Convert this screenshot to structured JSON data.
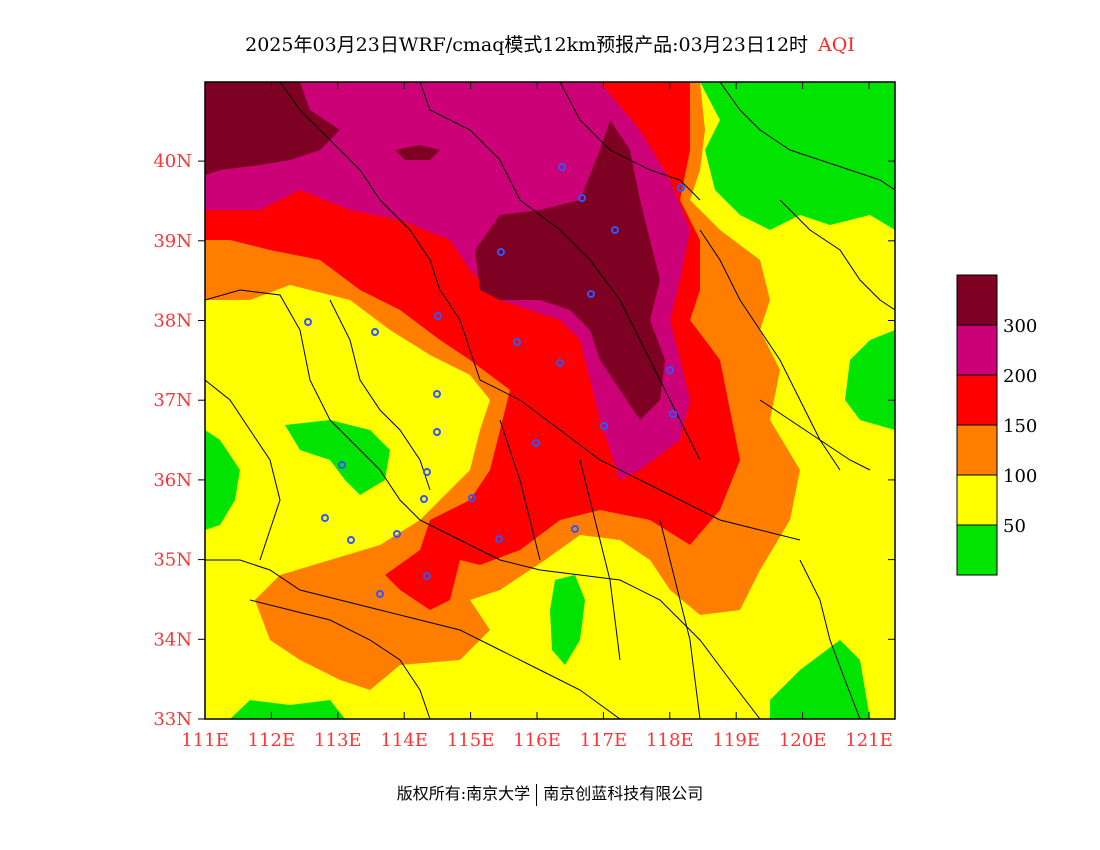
{
  "title": {
    "main": "2025年03月23日WRF/cmaq模式12km预报产品:03月23日12时",
    "variable": "AQI"
  },
  "axes": {
    "lat_labels": [
      "33N",
      "34N",
      "35N",
      "36N",
      "37N",
      "38N",
      "39N",
      "40N"
    ],
    "lon_labels": [
      "111E",
      "112E",
      "113E",
      "114E",
      "115E",
      "116E",
      "117E",
      "118E",
      "119E",
      "120E",
      "121E"
    ]
  },
  "legend": {
    "labels": [
      "50",
      "100",
      "150",
      "200",
      "300"
    ],
    "colors": [
      "#00e400",
      "#ffff00",
      "#ff7e00",
      "#ff0000",
      "#cc0077",
      "#7e0023"
    ]
  },
  "colors": {
    "good": "#00e400",
    "moderate": "#ffff00",
    "usg": "#ff7e00",
    "unhealthy": "#ff0000",
    "very_unhealthy": "#cc0077",
    "hazardous": "#7e0023",
    "axis_label": "#ff3333",
    "station": "#3355ff"
  },
  "footer": {
    "left": "版权所有:南京大学",
    "right": "南京创蓝科技有限公司"
  }
}
